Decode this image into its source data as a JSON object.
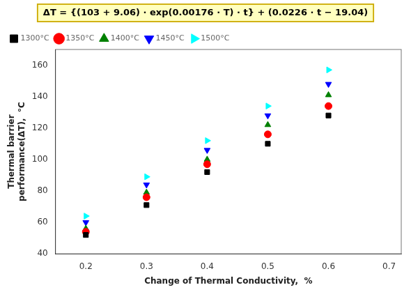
{
  "chart_data": {
    "type": "scatter",
    "annotation": "ΔT = {(103 + 9.06) · exp(0.00176 · T) · t} + (0.0226 · t − 19.04)",
    "xlabel": "Change of Thermal Conductivity,  %",
    "ylabel": "Thermal barrier\nperformance(ΔT),  °C",
    "xlim": [
      0.15,
      0.72
    ],
    "ylim": [
      40,
      170
    ],
    "xticks": [
      0.2,
      0.3,
      0.4,
      0.5,
      0.6,
      0.7
    ],
    "yticks": [
      40,
      60,
      80,
      100,
      120,
      140,
      160
    ],
    "grid": false,
    "legend": "upper left",
    "series": [
      {
        "name": "1300°C",
        "color": "black",
        "marker": "square",
        "x": [
          0.2,
          0.3,
          0.4,
          0.5,
          0.6
        ],
        "values": [
          52,
          71,
          92,
          110,
          128
        ]
      },
      {
        "name": "1350°C",
        "color": "red",
        "marker": "circle",
        "x": [
          0.2,
          0.3,
          0.4,
          0.5,
          0.6
        ],
        "values": [
          54,
          76,
          97,
          116,
          134
        ]
      },
      {
        "name": "1400°C",
        "color": "green",
        "marker": "triangle-up",
        "x": [
          0.2,
          0.3,
          0.4,
          0.5,
          0.6
        ],
        "values": [
          56,
          79,
          100,
          122,
          141
        ]
      },
      {
        "name": "1450°C",
        "color": "blue",
        "marker": "triangle-down",
        "x": [
          0.2,
          0.3,
          0.4,
          0.5,
          0.6
        ],
        "values": [
          60,
          84,
          106,
          128,
          148
        ]
      },
      {
        "name": "1500°C",
        "color": "cyan",
        "marker": "triangle-right",
        "x": [
          0.2,
          0.3,
          0.4,
          0.5,
          0.6
        ],
        "values": [
          64,
          89,
          112,
          134,
          157
        ]
      }
    ]
  }
}
